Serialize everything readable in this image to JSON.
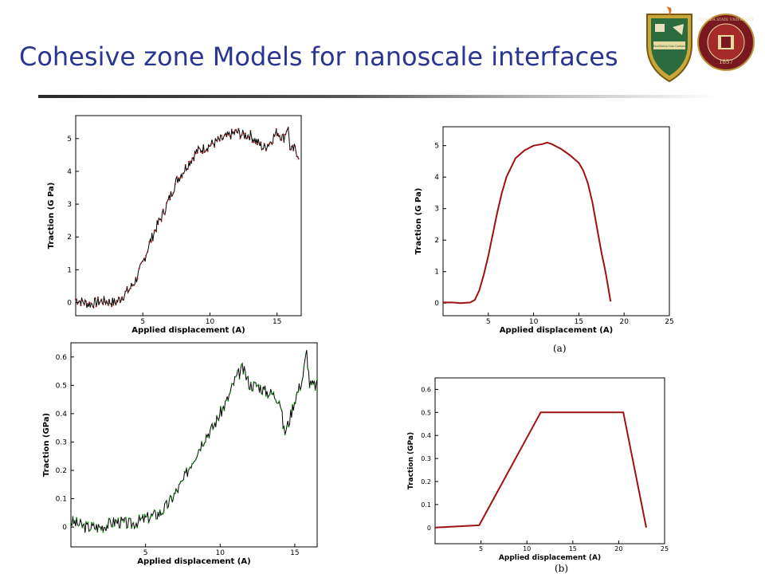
{
  "slide": {
    "title": "Cohesive zone Models for nanoscale interfaces",
    "title_color": "#2a3590"
  },
  "logos": [
    {
      "name": "university-crest-icon",
      "motto": "Excellentia Cum Caritate"
    },
    {
      "name": "fsu-seal-icon",
      "text": "FLORIDA STATE UNIVERSITY",
      "year": "1857"
    }
  ],
  "captions": {
    "a": "(a)",
    "b": "(b)"
  },
  "chart_data": [
    {
      "id": "md-traction-gpa-5",
      "type": "line",
      "xlabel": "Applied displacement (A)",
      "ylabel": "Traction (G Pa)",
      "xlim": [
        0,
        16.8
      ],
      "ylim": [
        -0.4,
        5.7
      ],
      "xticks": [
        5,
        10,
        15
      ],
      "yticks": [
        0,
        1,
        2,
        3,
        4,
        5
      ],
      "line_color": "#000000",
      "marker_color": "#8b1a1a",
      "noise": 0.16,
      "seed": 7,
      "x": [
        0,
        1,
        2,
        3,
        3.5,
        4,
        4.5,
        5,
        5.5,
        6,
        6.5,
        7,
        7.5,
        8,
        8.5,
        9,
        9.5,
        10,
        10.5,
        11,
        11.5,
        12,
        12.5,
        13,
        13.5,
        14,
        14.5,
        15,
        15.5,
        15.8,
        16,
        16.3,
        16.6
      ],
      "y": [
        0.1,
        -0.05,
        0.05,
        0.0,
        0.2,
        0.4,
        0.7,
        1.2,
        1.8,
        2.3,
        2.7,
        3.2,
        3.7,
        4.0,
        4.3,
        4.6,
        4.7,
        4.8,
        4.9,
        5.0,
        5.1,
        5.2,
        5.1,
        5.1,
        4.9,
        4.7,
        4.9,
        5.2,
        5.0,
        5.4,
        4.6,
        4.7,
        4.5
      ]
    },
    {
      "id": "cz-traction-bell",
      "type": "line",
      "xlabel": "Applied displacement (A)",
      "ylabel": "Traction (G Pa)",
      "xlim": [
        0,
        25
      ],
      "ylim": [
        -0.4,
        5.6
      ],
      "xticks": [
        5,
        10,
        15,
        20,
        25
      ],
      "yticks": [
        0,
        1,
        2,
        3,
        4,
        5
      ],
      "line_color": "#a01010",
      "x": [
        0,
        1,
        2,
        3,
        3.5,
        4,
        4.5,
        5,
        5.5,
        6,
        6.5,
        7,
        8,
        9,
        10,
        11,
        11.5,
        12,
        13,
        14,
        15,
        15.5,
        16,
        16.5,
        17,
        17.5,
        17.8,
        18,
        18.3,
        18.5
      ],
      "y": [
        0.02,
        0.02,
        0.0,
        0.02,
        0.1,
        0.4,
        0.9,
        1.5,
        2.2,
        2.9,
        3.5,
        4.0,
        4.6,
        4.85,
        5.0,
        5.05,
        5.1,
        5.05,
        4.9,
        4.7,
        4.45,
        4.2,
        3.8,
        3.2,
        2.4,
        1.6,
        1.2,
        0.9,
        0.4,
        0.05
      ]
    },
    {
      "id": "md-traction-gpa-06",
      "type": "line",
      "xlabel": "Applied displacement (A)",
      "ylabel": "Traction (GPa)",
      "xlim": [
        0,
        16.5
      ],
      "ylim": [
        -0.07,
        0.65
      ],
      "xticks": [
        5,
        10,
        15
      ],
      "yticks": [
        0,
        0.1,
        0.2,
        0.3,
        0.4,
        0.5,
        0.6
      ],
      "line_color": "#000000",
      "marker_color": "#1a9a1a",
      "noise": 0.022,
      "seed": 3,
      "x": [
        0,
        1,
        2,
        3,
        4,
        5,
        6,
        6.5,
        7,
        7.5,
        8,
        8.5,
        9,
        9.5,
        10,
        10.5,
        11,
        11.5,
        12,
        12.5,
        13,
        13.5,
        14,
        14.3,
        14.6,
        15,
        15.5,
        15.8,
        16,
        16.5
      ],
      "y": [
        0.02,
        0.0,
        0.0,
        0.02,
        0.01,
        0.03,
        0.05,
        0.08,
        0.12,
        0.16,
        0.22,
        0.27,
        0.32,
        0.35,
        0.4,
        0.45,
        0.52,
        0.56,
        0.5,
        0.5,
        0.48,
        0.47,
        0.45,
        0.33,
        0.37,
        0.45,
        0.52,
        0.62,
        0.5,
        0.5
      ]
    },
    {
      "id": "cz-traction-trapezoid",
      "type": "line",
      "xlabel": "Applied displacement (A)",
      "ylabel": "Traction (GPa)",
      "xlim": [
        0,
        25
      ],
      "ylim": [
        -0.07,
        0.65
      ],
      "xticks": [
        5,
        10,
        15,
        20,
        25
      ],
      "yticks": [
        0,
        0.1,
        0.2,
        0.3,
        0.4,
        0.5,
        0.6
      ],
      "line_color": "#a01010",
      "x": [
        0,
        4.8,
        11.5,
        20.5,
        23
      ],
      "y": [
        0,
        0.01,
        0.5,
        0.5,
        0
      ]
    }
  ]
}
